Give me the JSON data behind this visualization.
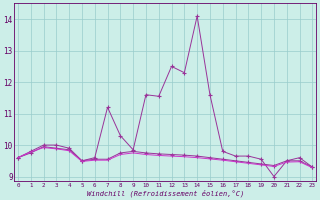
{
  "x": [
    0,
    1,
    2,
    3,
    4,
    5,
    6,
    7,
    8,
    9,
    10,
    11,
    12,
    13,
    14,
    15,
    16,
    17,
    18,
    19,
    20,
    21,
    22,
    23
  ],
  "y_main": [
    9.6,
    9.8,
    10.0,
    10.0,
    9.9,
    9.5,
    9.6,
    11.2,
    10.3,
    9.85,
    11.6,
    11.55,
    12.5,
    12.3,
    14.1,
    11.6,
    9.8,
    9.65,
    9.65,
    9.55,
    9.0,
    9.5,
    9.6,
    9.3
  ],
  "y_base": [
    9.6,
    9.75,
    9.95,
    9.9,
    9.85,
    9.5,
    9.55,
    9.55,
    9.75,
    9.8,
    9.75,
    9.72,
    9.7,
    9.68,
    9.65,
    9.6,
    9.55,
    9.5,
    9.45,
    9.4,
    9.35,
    9.5,
    9.5,
    9.3
  ],
  "y_smooth": [
    9.6,
    9.78,
    9.92,
    9.88,
    9.82,
    9.48,
    9.52,
    9.52,
    9.7,
    9.75,
    9.7,
    9.67,
    9.65,
    9.63,
    9.6,
    9.56,
    9.52,
    9.47,
    9.42,
    9.37,
    9.32,
    9.46,
    9.47,
    9.28
  ],
  "line_color": "#993399",
  "line_color2": "#cc33cc",
  "bg_color": "#cceee8",
  "grid_color": "#99cccc",
  "xlabel": "Windchill (Refroidissement éolien,°C)",
  "xlabel_color": "#660066",
  "tick_color": "#660066",
  "yticks": [
    9,
    10,
    11,
    12,
    13,
    14
  ],
  "xticks": [
    0,
    1,
    2,
    3,
    4,
    5,
    6,
    7,
    8,
    9,
    10,
    11,
    12,
    13,
    14,
    15,
    16,
    17,
    18,
    19,
    20,
    21,
    22,
    23
  ],
  "ylim_min": 8.85,
  "ylim_max": 14.5,
  "xlim_min": -0.3,
  "xlim_max": 23.3
}
